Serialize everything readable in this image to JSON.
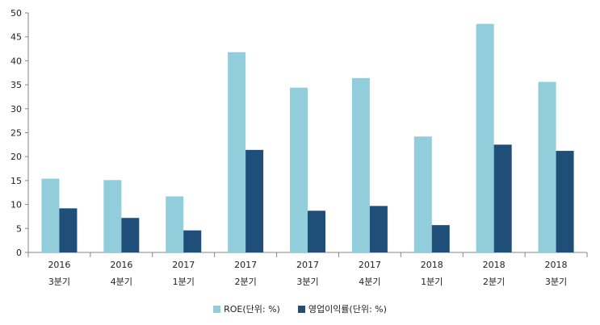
{
  "chart_data": {
    "type": "bar",
    "title": "",
    "xlabel": "",
    "ylabel": "",
    "ylim": [
      0,
      50
    ],
    "yticks": [
      0,
      5,
      10,
      15,
      20,
      25,
      30,
      35,
      40,
      45,
      50
    ],
    "grid": false,
    "legend_position": "bottom",
    "categories": [
      {
        "year": "2016",
        "quarter": "3분기"
      },
      {
        "year": "2016",
        "quarter": "4분기"
      },
      {
        "year": "2017",
        "quarter": "1분기"
      },
      {
        "year": "2017",
        "quarter": "2분기"
      },
      {
        "year": "2017",
        "quarter": "3분기"
      },
      {
        "year": "2017",
        "quarter": "4분기"
      },
      {
        "year": "2018",
        "quarter": "1분기"
      },
      {
        "year": "2018",
        "quarter": "2분기"
      },
      {
        "year": "2018",
        "quarter": "3분기"
      }
    ],
    "series": [
      {
        "name": "ROE(단위: %)",
        "color": "#92cddc",
        "values": [
          15.4,
          15.1,
          11.7,
          41.8,
          34.4,
          36.4,
          24.2,
          47.7,
          35.6
        ]
      },
      {
        "name": "영업이익률(단위: %)",
        "color": "#1f4e79",
        "values": [
          9.2,
          7.2,
          4.6,
          21.4,
          8.7,
          9.7,
          5.7,
          22.5,
          21.2
        ]
      }
    ]
  }
}
